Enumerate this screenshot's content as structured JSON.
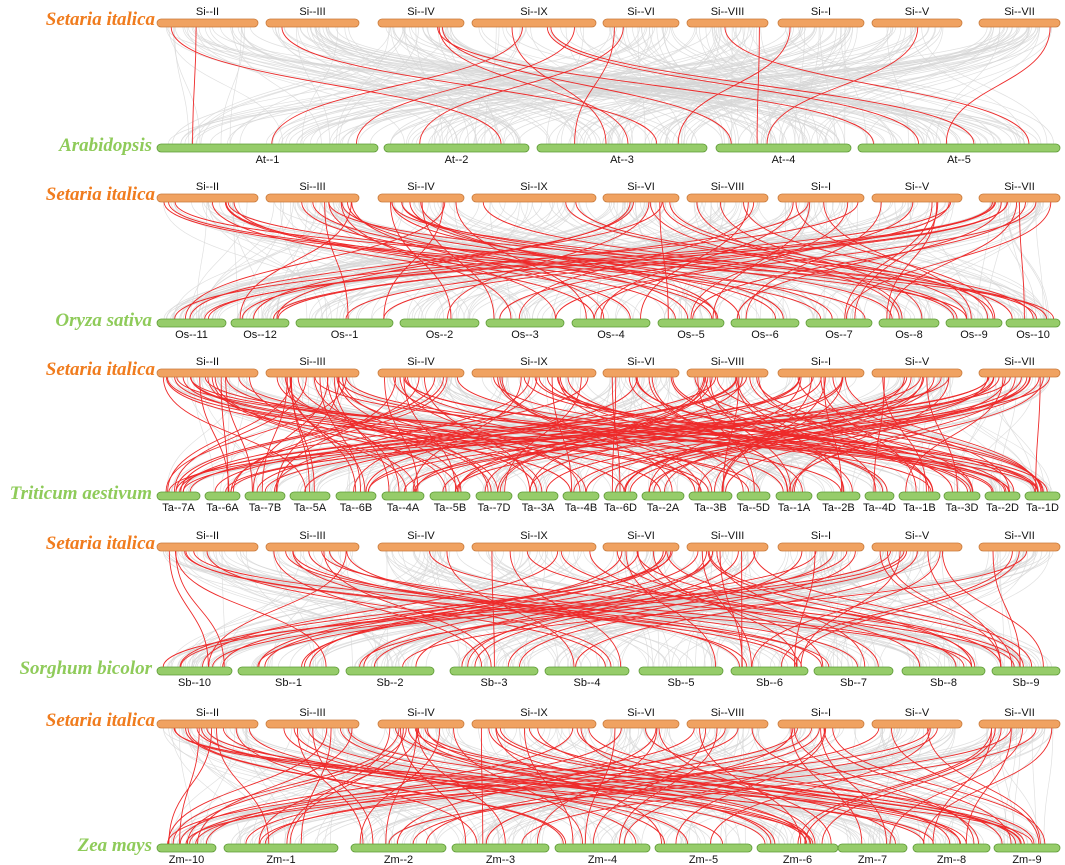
{
  "colors": {
    "reference": "#f0a261",
    "reference_stroke": "#c97b3c",
    "target": "#96cc6a",
    "target_stroke": "#5e9a36",
    "reference_label": "#f07c1e",
    "target_label": "#8fcb5a",
    "background_links": "#d5d5d5",
    "highlight_links": "#ee2a2a"
  },
  "reference": {
    "species": "Setaria italica",
    "chromosomes": [
      "Si--II",
      "Si--III",
      "Si--IV",
      "Si--IX",
      "Si--VI",
      "Si--VIII",
      "Si--I",
      "Si--V",
      "Si--VII"
    ]
  },
  "panels": [
    {
      "reference_species": "Setaria italica",
      "target_species": "Arabidopsis",
      "target_chromosomes": [
        "At--1",
        "At--2",
        "At--3",
        "At--4",
        "At--5"
      ],
      "highlight_link_count": 18
    },
    {
      "reference_species": "Setaria italica",
      "target_species": "Oryza sativa",
      "target_chromosomes": [
        "Os--11",
        "Os--12",
        "Os--1",
        "Os--2",
        "Os--3",
        "Os--4",
        "Os--5",
        "Os--6",
        "Os--7",
        "Os--8",
        "Os--9",
        "Os--10"
      ],
      "highlight_link_count": 70
    },
    {
      "reference_species": "Setaria italica",
      "target_species": "Triticum aestivum",
      "target_chromosomes": [
        "Ta--7A",
        "Ta--6A",
        "Ta--7B",
        "Ta--5A",
        "Ta--6B",
        "Ta--4A",
        "Ta--5B",
        "Ta--7D",
        "Ta--3A",
        "Ta--4B",
        "Ta--6D",
        "Ta--2A",
        "Ta--3B",
        "Ta--5D",
        "Ta--1A",
        "Ta--2B",
        "Ta--4D",
        "Ta--1B",
        "Ta--3D",
        "Ta--2D",
        "Ta--1D"
      ],
      "highlight_link_count": 150
    },
    {
      "reference_species": "Setaria italica",
      "target_species": "Sorghum bicolor",
      "target_chromosomes": [
        "Sb--10",
        "Sb--1",
        "Sb--2",
        "Sb--3",
        "Sb--4",
        "Sb--5",
        "Sb--6",
        "Sb--7",
        "Sb--8",
        "Sb--9"
      ],
      "highlight_link_count": 70
    },
    {
      "reference_species": "Setaria italica",
      "target_species": "Zea mays",
      "target_chromosomes": [
        "Zm--10",
        "Zm--1",
        "Zm--2",
        "Zm--3",
        "Zm--4",
        "Zm--5",
        "Zm--6",
        "Zm--7",
        "Zm--8",
        "Zm--9"
      ],
      "highlight_link_count": 90
    }
  ]
}
